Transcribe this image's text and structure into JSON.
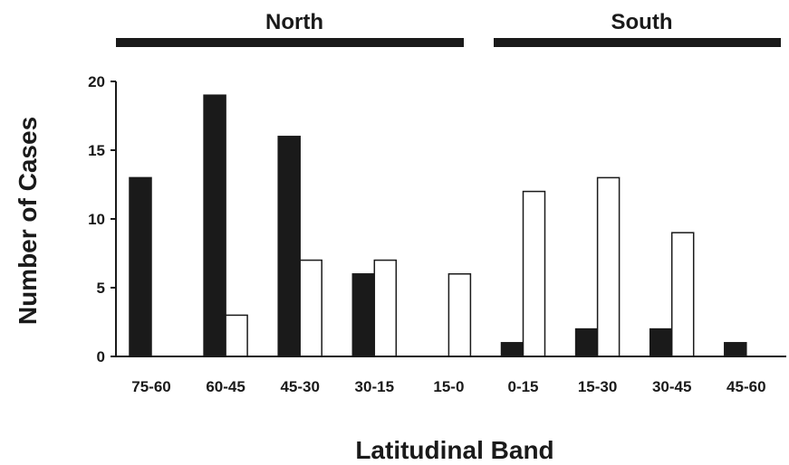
{
  "chart_data": {
    "type": "bar",
    "categories": [
      "75-60",
      "60-45",
      "45-30",
      "30-15",
      "15-0",
      "0-15",
      "15-30",
      "30-45",
      "45-60"
    ],
    "series": [
      {
        "values": [
          13,
          19,
          16,
          6,
          0,
          1,
          2,
          2,
          1
        ],
        "color": "#1a1a1a"
      },
      {
        "values": [
          0,
          3,
          7,
          7,
          6,
          12,
          13,
          9,
          0
        ],
        "color": "#ffffff"
      }
    ],
    "xlabel": "Latitudinal Band",
    "ylabel": "Number of Cases",
    "ylim": [
      0,
      20
    ],
    "yticks": [
      0,
      5,
      10,
      15,
      20
    ],
    "groups": [
      {
        "label": "North",
        "categories": [
          "75-60",
          "60-45",
          "45-30",
          "30-15",
          "15-0"
        ]
      },
      {
        "label": "South",
        "categories": [
          "0-15",
          "15-30",
          "30-45",
          "45-60"
        ]
      }
    ],
    "grid": false,
    "legend": "none"
  }
}
